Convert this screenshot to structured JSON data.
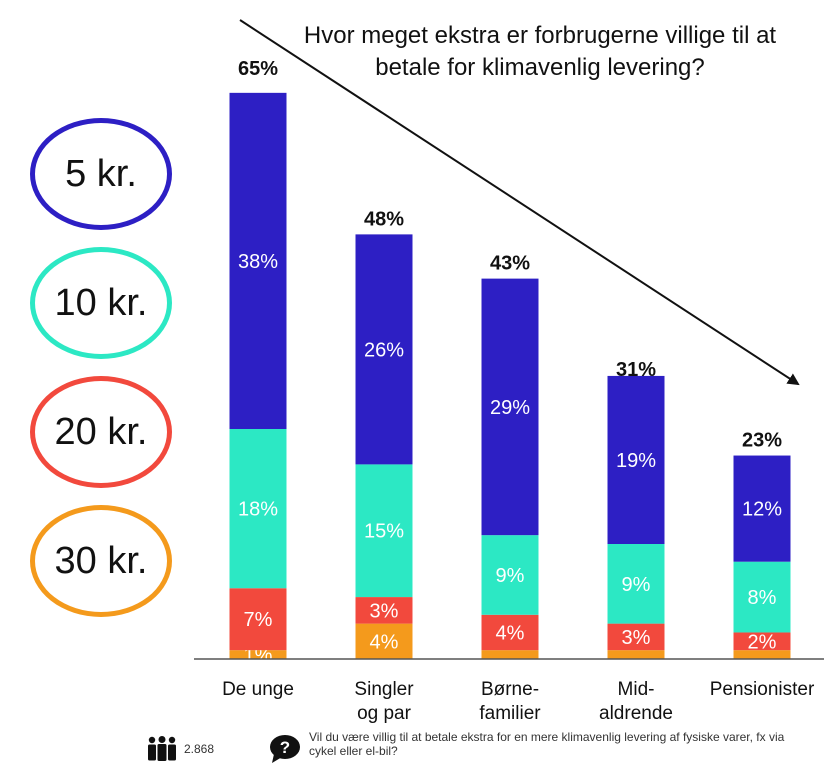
{
  "title": "Hvor meget ekstra er forbrugerne villige til at betale for klimavenlig levering?",
  "legend": [
    {
      "label": "5 kr.",
      "color": "#2d1fc4"
    },
    {
      "label": "10 kr.",
      "color": "#2ce8c4"
    },
    {
      "label": "20 kr.",
      "color": "#f2493d"
    },
    {
      "label": "30 kr.",
      "color": "#f49a1c"
    }
  ],
  "footer": {
    "respondents_icon": "people-icon",
    "respondents": "2.868",
    "question_icon": "question-icon",
    "question": "Vil du være villig til at betale ekstra for en mere klimavenlig levering af fysiske varer, fx via cykel eller el-bil?"
  },
  "chart_data": {
    "type": "bar",
    "stacked": true,
    "categories": [
      [
        "De unge"
      ],
      [
        "Singler",
        "og par"
      ],
      [
        "Børne-",
        "familier"
      ],
      [
        "Mid-",
        "aldrende"
      ],
      [
        "Pensionister"
      ]
    ],
    "totals": [
      65,
      48,
      43,
      31,
      23
    ],
    "total_labels": [
      "65%",
      "48%",
      "43%",
      "31%",
      "23%"
    ],
    "series": [
      {
        "name": "30 kr.",
        "color": "#f49a1c",
        "values": [
          1,
          4,
          1,
          1,
          1
        ],
        "labels": [
          "1%",
          "4%",
          "",
          "",
          ""
        ]
      },
      {
        "name": "20 kr.",
        "color": "#f2493d",
        "values": [
          7,
          3,
          4,
          3,
          2
        ],
        "labels": [
          "7%",
          "3%",
          "4%",
          "3%",
          "2%"
        ]
      },
      {
        "name": "10 kr.",
        "color": "#2ce8c4",
        "values": [
          18,
          15,
          9,
          9,
          8
        ],
        "labels": [
          "18%",
          "15%",
          "9%",
          "9%",
          "8%"
        ]
      },
      {
        "name": "5 kr.",
        "color": "#2d1fc4",
        "values": [
          38,
          26,
          29,
          19,
          12
        ],
        "labels": [
          "38%",
          "26%",
          "29%",
          "19%",
          "12%"
        ]
      }
    ],
    "ylim": [
      0,
      65
    ],
    "trend_arrow": "decreasing"
  }
}
